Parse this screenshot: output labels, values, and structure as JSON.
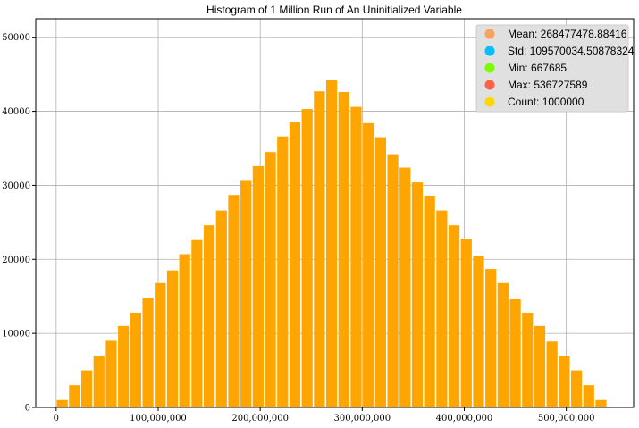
{
  "chart_data": {
    "type": "bar",
    "title": "Histogram of 1 Million Run of An Uninitialized Variable",
    "xlabel": "",
    "ylabel": "",
    "xlim": [
      -20000000,
      566000000
    ],
    "ylim": [
      0,
      52500
    ],
    "grid": true,
    "bar_color": "#ffa500",
    "bin_width": 10700000,
    "x_ticks": [
      0,
      100000000,
      200000000,
      300000000,
      400000000,
      500000000
    ],
    "x_tick_labels": [
      "0",
      "100,000,000",
      "200,000,000",
      "300,000,000",
      "400,000,000",
      "500,000,000"
    ],
    "y_ticks": [
      0,
      10000,
      20000,
      30000,
      40000,
      50000
    ],
    "y_tick_labels": [
      "0",
      "10000",
      "20000",
      "30000",
      "40000",
      "50000"
    ],
    "bin_centers": [
      6000000,
      18000000,
      30000000,
      42000000,
      54000000,
      66000000,
      78000000,
      90000000,
      102000000,
      114000000,
      126000000,
      138000000,
      150000000,
      162000000,
      174000000,
      186000000,
      198000000,
      210000000,
      222000000,
      234000000,
      246000000,
      258000000,
      270000000,
      282000000,
      294000000,
      306000000,
      318000000,
      330000000,
      342000000,
      354000000,
      366000000,
      378000000,
      390000000,
      402000000,
      414000000,
      426000000,
      438000000,
      450000000,
      462000000,
      474000000,
      486000000,
      498000000,
      510000000,
      522000000,
      534000000
    ],
    "values": [
      1000,
      3000,
      5000,
      7000,
      9000,
      11000,
      12800,
      14800,
      16800,
      18500,
      20700,
      22600,
      24600,
      26600,
      28700,
      30600,
      32600,
      34500,
      36600,
      38500,
      40300,
      42700,
      44200,
      42600,
      40600,
      38400,
      36500,
      34200,
      32400,
      30400,
      28600,
      26600,
      24600,
      22800,
      20500,
      18700,
      16800,
      14600,
      12800,
      11000,
      8900,
      7000,
      5000,
      3000,
      1000
    ],
    "legend": {
      "position": "top-right",
      "entries": [
        {
          "label": "Mean:  268477478.88416",
          "color": "#f4a460"
        },
        {
          "label": "Std:  109570034.50878324",
          "color": "#00bfff"
        },
        {
          "label": "Min:  667685",
          "color": "#7cfc00"
        },
        {
          "label": "Max:  536727589",
          "color": "#ff6347"
        },
        {
          "label": "Count:  1000000",
          "color": "#ffd700"
        }
      ]
    }
  }
}
